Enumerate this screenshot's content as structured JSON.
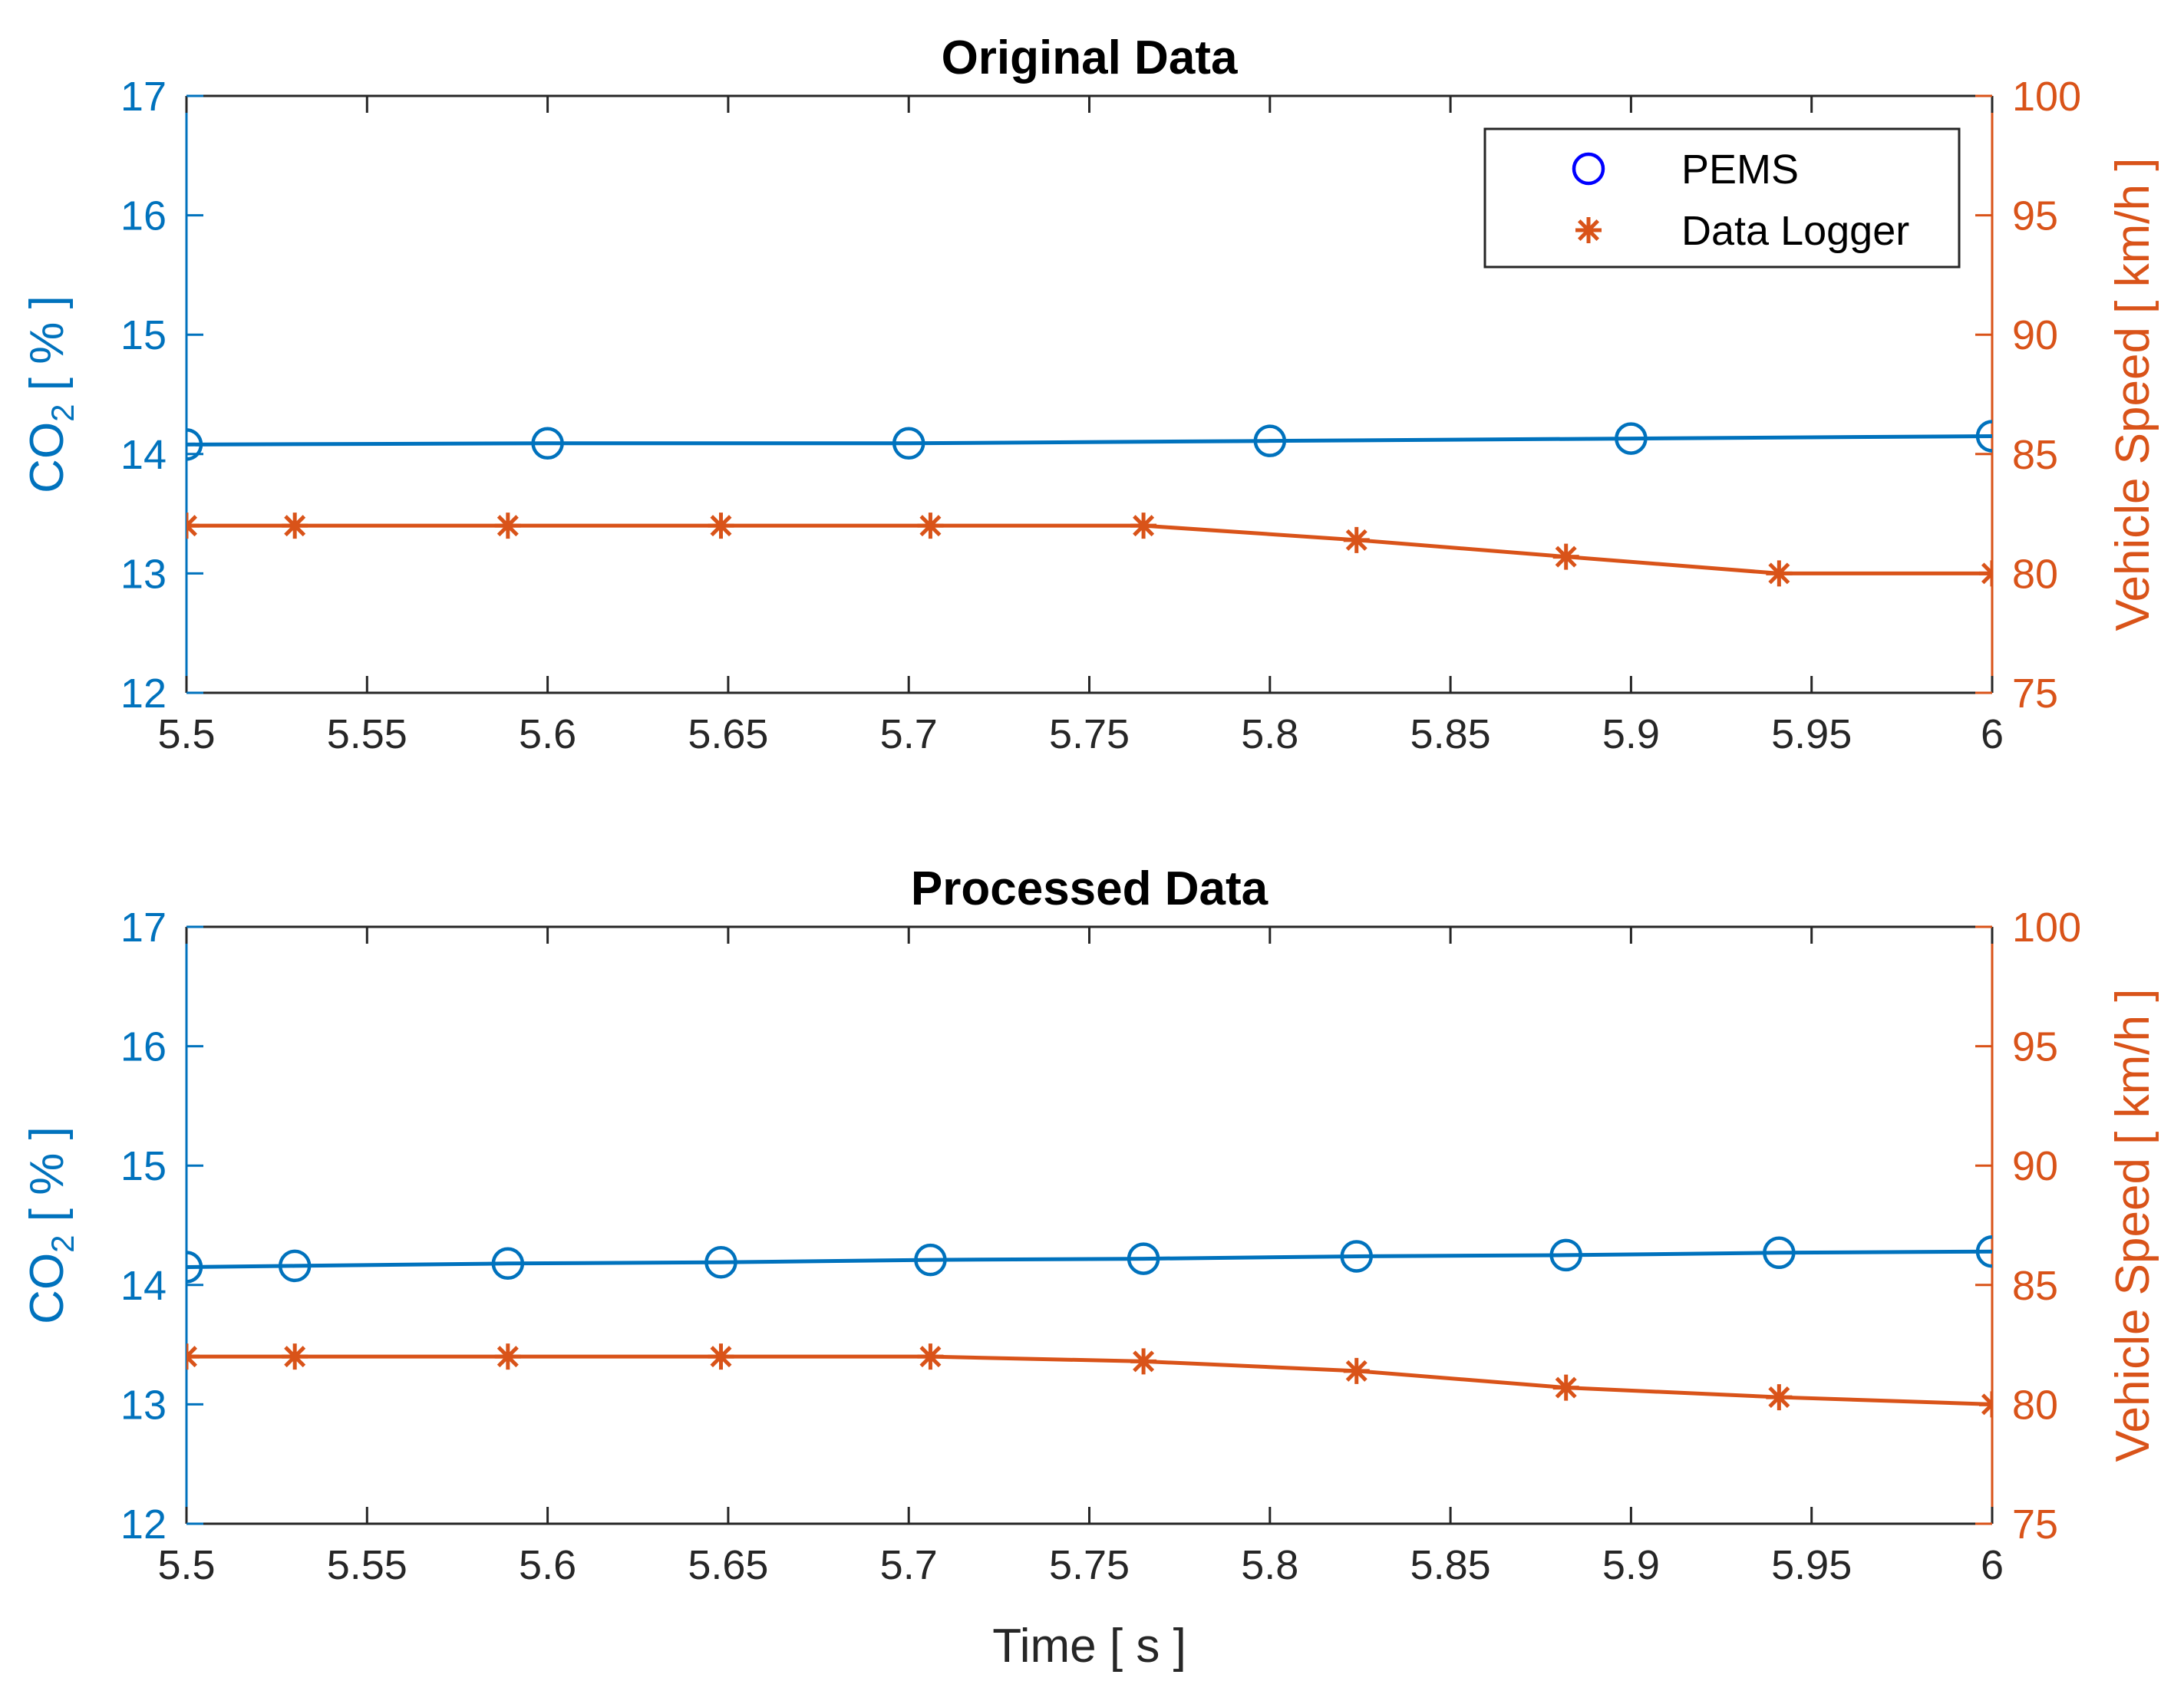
{
  "chart_data": [
    {
      "type": "line",
      "title": "Original Data",
      "xlabel": "",
      "ylabel_left": "CO2 [ % ]",
      "ylabel_right": "Vehicle Speed  [ km/h ]",
      "xlim": [
        5.5,
        6
      ],
      "ylim_left": [
        12,
        17
      ],
      "ylim_right": [
        75,
        100
      ],
      "xticks": [
        "5.5",
        "5.55",
        "5.6",
        "5.65",
        "5.7",
        "5.75",
        "5.8",
        "5.85",
        "5.9",
        "5.95",
        "6"
      ],
      "yticks_left": [
        "12",
        "13",
        "14",
        "15",
        "16",
        "17"
      ],
      "yticks_right": [
        "75",
        "80",
        "85",
        "90",
        "95",
        "100"
      ],
      "grid": false,
      "legend": {
        "position": "top-right",
        "entries": [
          "PEMS",
          "Data Logger"
        ]
      },
      "series": [
        {
          "name": "PEMS",
          "axis": "left",
          "color": "#0072BD",
          "marker": "circle",
          "x": [
            5.5,
            5.6,
            5.7,
            5.8,
            5.9,
            6.0
          ],
          "values": [
            14.08,
            14.09,
            14.09,
            14.11,
            14.13,
            14.15
          ]
        },
        {
          "name": "Data Logger",
          "axis": "right",
          "color": "#D95319",
          "marker": "asterisk",
          "x": [
            5.5,
            5.53,
            5.589,
            5.648,
            5.706,
            5.765,
            5.824,
            5.882,
            5.941,
            6.0
          ],
          "values": [
            82,
            82,
            82,
            82,
            82,
            82,
            81.4,
            80.7,
            80,
            80
          ]
        }
      ]
    },
    {
      "type": "line",
      "title": "Processed Data",
      "xlabel": "Time [ s ]",
      "ylabel_left": "CO2 [ % ]",
      "ylabel_right": "Vehicle Speed  [ km/h ]",
      "xlim": [
        5.5,
        6
      ],
      "ylim_left": [
        12,
        17
      ],
      "ylim_right": [
        75,
        100
      ],
      "xticks": [
        "5.5",
        "5.55",
        "5.6",
        "5.65",
        "5.7",
        "5.75",
        "5.8",
        "5.85",
        "5.9",
        "5.95",
        "6"
      ],
      "yticks_left": [
        "12",
        "13",
        "14",
        "15",
        "16",
        "17"
      ],
      "yticks_right": [
        "75",
        "80",
        "85",
        "90",
        "95",
        "100"
      ],
      "grid": false,
      "legend": null,
      "series": [
        {
          "name": "PEMS",
          "axis": "left",
          "color": "#0072BD",
          "marker": "circle",
          "x": [
            5.5,
            5.53,
            5.589,
            5.648,
            5.706,
            5.765,
            5.824,
            5.882,
            5.941,
            6.0
          ],
          "values": [
            14.15,
            14.16,
            14.18,
            14.19,
            14.21,
            14.22,
            14.24,
            14.25,
            14.27,
            14.28
          ]
        },
        {
          "name": "Data Logger",
          "axis": "right",
          "color": "#D95319",
          "marker": "asterisk",
          "x": [
            5.5,
            5.53,
            5.589,
            5.648,
            5.706,
            5.765,
            5.824,
            5.882,
            5.941,
            6.0
          ],
          "values": [
            82,
            82,
            82,
            82,
            82,
            81.8,
            81.4,
            80.7,
            80.3,
            80
          ]
        }
      ]
    }
  ]
}
